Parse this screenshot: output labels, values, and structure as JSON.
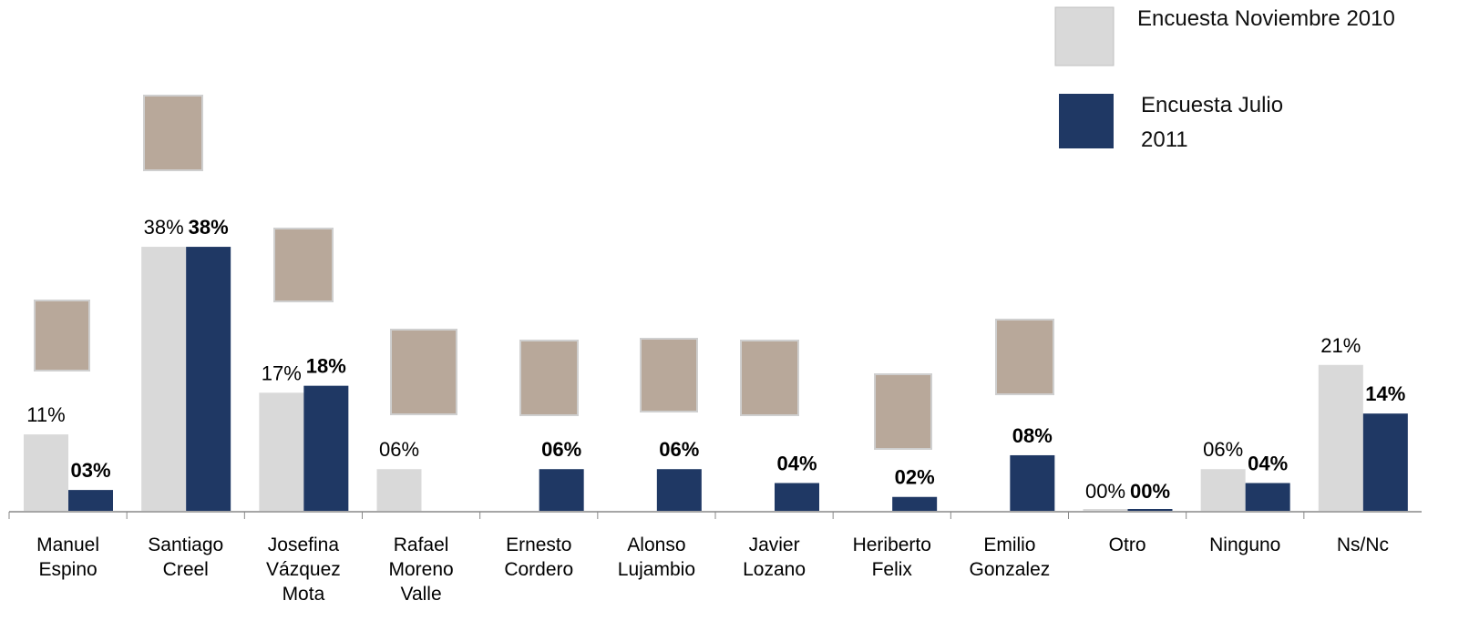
{
  "chart_data": {
    "type": "bar",
    "categories": [
      "Manuel Espino",
      "Santiago Creel",
      "Josefina Vázquez Mota",
      "Rafael Moreno Valle",
      "Ernesto Cordero",
      "Alonso Lujambio",
      "Javier Lozano",
      "Heriberto Felix",
      "Emilio Gonzalez",
      "Otro",
      "Ninguno",
      "Ns/Nc"
    ],
    "series": [
      {
        "name": "Encuesta Noviembre 2010",
        "color": "#d9d9d9",
        "values": [
          11,
          38,
          17,
          6,
          null,
          null,
          null,
          null,
          null,
          0,
          6,
          21
        ],
        "value_labels": [
          "11%",
          "38%",
          "17%",
          "06%",
          null,
          null,
          null,
          null,
          null,
          "00%",
          "06%",
          "21%"
        ]
      },
      {
        "name": "Encuesta Julio 2011",
        "color": "#1f3864",
        "values": [
          3,
          38,
          18,
          null,
          6,
          6,
          4,
          2,
          8,
          0,
          4,
          14
        ],
        "value_labels": [
          "03%",
          "38%",
          "18%",
          null,
          "06%",
          "06%",
          "04%",
          "02%",
          "08%",
          "00%",
          "04%",
          "14%"
        ]
      }
    ],
    "legend": "top-right"
  }
}
